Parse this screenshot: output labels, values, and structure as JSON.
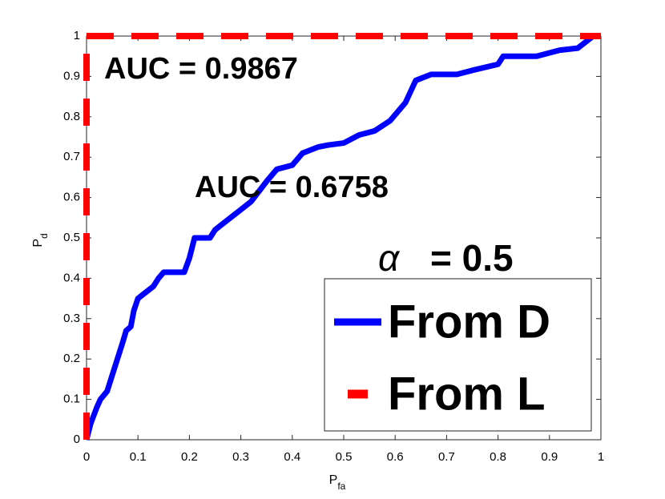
{
  "chart_data": {
    "type": "line",
    "x_label": {
      "text": "P",
      "subscript": "fa"
    },
    "y_label": {
      "text": "P",
      "subscript": "d"
    },
    "annotations": [
      "AUC = 0.9867",
      "AUC = 0.6758"
    ],
    "legend_title": {
      "symbol": "α",
      "text": "= 0.5"
    },
    "xlim": [
      0,
      1
    ],
    "ylim": [
      0,
      1
    ],
    "xticks": [
      0,
      0.1,
      0.2,
      0.3,
      0.4,
      0.5,
      0.6,
      0.7,
      0.8,
      0.9,
      1
    ],
    "yticks": [
      0,
      0.1,
      0.2,
      0.3,
      0.4,
      0.5,
      0.6,
      0.7,
      0.8,
      0.9,
      1
    ],
    "grid": false,
    "legend": "lower right",
    "series": [
      {
        "name": "From D",
        "color": "#0000ff",
        "style": "solid",
        "x": [
          0,
          0.008,
          0.02,
          0.027,
          0.04,
          0.05,
          0.06,
          0.07,
          0.077,
          0.086,
          0.092,
          0.1,
          0.11,
          0.13,
          0.14,
          0.15,
          0.19,
          0.2,
          0.21,
          0.24,
          0.25,
          0.28,
          0.3,
          0.32,
          0.35,
          0.37,
          0.4,
          0.42,
          0.45,
          0.47,
          0.5,
          0.53,
          0.56,
          0.59,
          0.62,
          0.64,
          0.67,
          0.72,
          0.75,
          0.8,
          0.81,
          0.875,
          0.92,
          0.955,
          0.985
        ],
        "values": [
          0,
          0.04,
          0.08,
          0.1,
          0.12,
          0.16,
          0.2,
          0.24,
          0.27,
          0.28,
          0.32,
          0.35,
          0.36,
          0.38,
          0.4,
          0.415,
          0.415,
          0.45,
          0.5,
          0.5,
          0.52,
          0.55,
          0.57,
          0.59,
          0.64,
          0.67,
          0.68,
          0.71,
          0.725,
          0.73,
          0.735,
          0.755,
          0.765,
          0.79,
          0.835,
          0.89,
          0.905,
          0.905,
          0.915,
          0.93,
          0.95,
          0.95,
          0.965,
          0.97,
          1
        ]
      },
      {
        "name": "From L",
        "color": "#ff0000",
        "style": "dashed",
        "x": [
          0,
          0,
          1
        ],
        "values": [
          0,
          1,
          1
        ]
      }
    ]
  }
}
